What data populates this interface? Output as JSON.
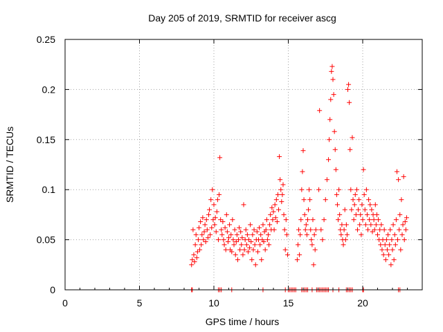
{
  "chart_data": {
    "type": "scatter",
    "title": "Day 205 of 2019, SRMTID for receiver ascg",
    "xlabel": "GPS time / hours",
    "ylabel": "SRMTID / TECUs",
    "xlim": [
      0,
      24
    ],
    "ylim": [
      0,
      0.25
    ],
    "xticks": [
      0,
      5,
      10,
      15,
      20
    ],
    "yticks": [
      0,
      0.05,
      0.1,
      0.15,
      0.2,
      0.25
    ],
    "xtick_labels": [
      "0",
      "5",
      "10",
      "15",
      "20"
    ],
    "ytick_labels": [
      "0",
      "0.05",
      "0.1",
      "0.15",
      "0.2",
      "0.25"
    ],
    "grid": true,
    "marker": "+",
    "series_color": "#ff0000",
    "series": [
      {
        "name": "SRMTID",
        "points": [
          [
            8.5,
            0.025
          ],
          [
            8.55,
            0.03
          ],
          [
            8.6,
            0.06
          ],
          [
            8.65,
            0.035
          ],
          [
            8.7,
            0.028
          ],
          [
            8.75,
            0.045
          ],
          [
            8.8,
            0.055
          ],
          [
            8.85,
            0.032
          ],
          [
            8.9,
            0.038
          ],
          [
            8.95,
            0.05
          ],
          [
            9.0,
            0.062
          ],
          [
            9.05,
            0.04
          ],
          [
            9.1,
            0.068
          ],
          [
            9.15,
            0.045
          ],
          [
            9.2,
            0.055
          ],
          [
            9.25,
            0.072
          ],
          [
            9.3,
            0.05
          ],
          [
            9.35,
            0.058
          ],
          [
            9.4,
            0.065
          ],
          [
            9.45,
            0.048
          ],
          [
            9.5,
            0.07
          ],
          [
            9.55,
            0.06
          ],
          [
            9.6,
            0.052
          ],
          [
            9.65,
            0.075
          ],
          [
            9.7,
            0.08
          ],
          [
            9.75,
            0.055
          ],
          [
            9.8,
            0.09
          ],
          [
            9.85,
            0.062
          ],
          [
            9.9,
            0.1
          ],
          [
            9.95,
            0.07
          ],
          [
            10.0,
            0.085
          ],
          [
            10.05,
            0.065
          ],
          [
            10.1,
            0.072
          ],
          [
            10.15,
            0.058
          ],
          [
            10.2,
            0.078
          ],
          [
            10.25,
            0.09
          ],
          [
            10.3,
            0.05
          ],
          [
            10.35,
            0.095
          ],
          [
            10.4,
            0.132
          ],
          [
            10.45,
            0.07
          ],
          [
            10.5,
            0.06
          ],
          [
            10.55,
            0.055
          ],
          [
            10.6,
            0.068
          ],
          [
            10.65,
            0.05
          ],
          [
            10.7,
            0.045
          ],
          [
            10.75,
            0.062
          ],
          [
            10.8,
            0.04
          ],
          [
            10.85,
            0.075
          ],
          [
            10.9,
            0.058
          ],
          [
            10.95,
            0.048
          ],
          [
            11.0,
            0.052
          ],
          [
            11.05,
            0.065
          ],
          [
            11.1,
            0.04
          ],
          [
            11.15,
            0.055
          ],
          [
            11.2,
            0.038
          ],
          [
            11.25,
            0.07
          ],
          [
            11.3,
            0.05
          ],
          [
            11.35,
            0.045
          ],
          [
            11.4,
            0.06
          ],
          [
            11.45,
            0.035
          ],
          [
            11.5,
            0.048
          ],
          [
            11.55,
            0.055
          ],
          [
            11.6,
            0.03
          ],
          [
            11.65,
            0.05
          ],
          [
            11.7,
            0.062
          ],
          [
            11.75,
            0.04
          ],
          [
            11.8,
            0.058
          ],
          [
            11.85,
            0.045
          ],
          [
            11.9,
            0.052
          ],
          [
            11.95,
            0.035
          ],
          [
            12.0,
            0.085
          ],
          [
            12.05,
            0.04
          ],
          [
            12.1,
            0.05
          ],
          [
            12.15,
            0.06
          ],
          [
            12.2,
            0.045
          ],
          [
            12.25,
            0.055
          ],
          [
            12.3,
            0.038
          ],
          [
            12.35,
            0.05
          ],
          [
            12.4,
            0.042
          ],
          [
            12.45,
            0.065
          ],
          [
            12.5,
            0.048
          ],
          [
            12.55,
            0.03
          ],
          [
            12.6,
            0.055
          ],
          [
            12.65,
            0.04
          ],
          [
            12.7,
            0.06
          ],
          [
            12.75,
            0.045
          ],
          [
            12.8,
            0.025
          ],
          [
            12.85,
            0.05
          ],
          [
            12.9,
            0.058
          ],
          [
            12.95,
            0.038
          ],
          [
            13.0,
            0.05
          ],
          [
            13.05,
            0.062
          ],
          [
            13.1,
            0.045
          ],
          [
            13.15,
            0.055
          ],
          [
            13.2,
            0.03
          ],
          [
            13.25,
            0.05
          ],
          [
            13.3,
            0.065
          ],
          [
            13.35,
            0.048
          ],
          [
            13.4,
            0.058
          ],
          [
            13.45,
            0.04
          ],
          [
            13.5,
            0.06
          ],
          [
            13.55,
            0.07
          ],
          [
            13.6,
            0.05
          ],
          [
            13.65,
            0.055
          ],
          [
            13.7,
            0.045
          ],
          [
            13.75,
            0.065
          ],
          [
            13.8,
            0.075
          ],
          [
            13.85,
            0.06
          ],
          [
            13.9,
            0.082
          ],
          [
            13.95,
            0.07
          ],
          [
            14.0,
            0.078
          ],
          [
            14.05,
            0.06
          ],
          [
            14.1,
            0.085
          ],
          [
            14.15,
            0.072
          ],
          [
            14.2,
            0.09
          ],
          [
            14.25,
            0.068
          ],
          [
            14.3,
            0.095
          ],
          [
            14.35,
            0.08
          ],
          [
            14.4,
            0.133
          ],
          [
            14.45,
            0.11
          ],
          [
            14.5,
            0.1
          ],
          [
            14.55,
            0.088
          ],
          [
            14.6,
            0.095
          ],
          [
            14.65,
            0.105
          ],
          [
            14.7,
            0.075
          ],
          [
            14.75,
            0.06
          ],
          [
            14.8,
            0.04
          ],
          [
            14.85,
            0.07
          ],
          [
            14.9,
            0.055
          ],
          [
            14.95,
            0.035
          ],
          [
            15.6,
            0.03
          ],
          [
            15.65,
            0.045
          ],
          [
            15.7,
            0.06
          ],
          [
            15.75,
            0.035
          ],
          [
            15.8,
            0.055
          ],
          [
            15.85,
            0.07
          ],
          [
            15.9,
            0.1
          ],
          [
            15.95,
            0.118
          ],
          [
            16.0,
            0.139
          ],
          [
            16.05,
            0.09
          ],
          [
            16.1,
            0.075
          ],
          [
            16.15,
            0.06
          ],
          [
            16.2,
            0.065
          ],
          [
            16.25,
            0.055
          ],
          [
            16.3,
            0.07
          ],
          [
            16.35,
            0.08
          ],
          [
            16.4,
            0.1
          ],
          [
            16.45,
            0.09
          ],
          [
            16.5,
            0.06
          ],
          [
            16.55,
            0.05
          ],
          [
            16.6,
            0.045
          ],
          [
            16.65,
            0.07
          ],
          [
            16.7,
            0.025
          ],
          [
            16.75,
            0.055
          ],
          [
            16.8,
            0.04
          ],
          [
            16.85,
            0.06
          ],
          [
            17.05,
            0.1
          ],
          [
            17.1,
            0.179
          ],
          [
            17.2,
            0.06
          ],
          [
            17.3,
            0.05
          ],
          [
            17.4,
            0.07
          ],
          [
            17.5,
            0.09
          ],
          [
            17.6,
            0.11
          ],
          [
            17.7,
            0.13
          ],
          [
            17.75,
            0.15
          ],
          [
            17.8,
            0.17
          ],
          [
            17.85,
            0.19
          ],
          [
            17.9,
            0.218
          ],
          [
            17.95,
            0.223
          ],
          [
            18.0,
            0.21
          ],
          [
            18.05,
            0.195
          ],
          [
            18.1,
            0.158
          ],
          [
            18.15,
            0.14
          ],
          [
            18.2,
            0.12
          ],
          [
            18.25,
            0.095
          ],
          [
            18.3,
            0.085
          ],
          [
            18.35,
            0.07
          ],
          [
            18.4,
            0.1
          ],
          [
            18.45,
            0.075
          ],
          [
            18.5,
            0.06
          ],
          [
            18.55,
            0.055
          ],
          [
            18.6,
            0.065
          ],
          [
            18.65,
            0.05
          ],
          [
            18.7,
            0.045
          ],
          [
            18.75,
            0.06
          ],
          [
            18.8,
            0.08
          ],
          [
            18.85,
            0.05
          ],
          [
            18.9,
            0.065
          ],
          [
            18.95,
            0.055
          ],
          [
            19.0,
            0.2
          ],
          [
            19.05,
            0.205
          ],
          [
            19.1,
            0.187
          ],
          [
            19.15,
            0.14
          ],
          [
            19.2,
            0.1
          ],
          [
            19.25,
            0.08
          ],
          [
            19.3,
            0.152
          ],
          [
            19.35,
            0.09
          ],
          [
            19.4,
            0.07
          ],
          [
            19.45,
            0.085
          ],
          [
            19.5,
            0.095
          ],
          [
            19.55,
            0.075
          ],
          [
            19.6,
            0.1
          ],
          [
            19.65,
            0.06
          ],
          [
            19.7,
            0.08
          ],
          [
            19.75,
            0.09
          ],
          [
            19.8,
            0.065
          ],
          [
            19.85,
            0.075
          ],
          [
            19.9,
            0.055
          ],
          [
            19.95,
            0.085
          ],
          [
            20.0,
            0.07
          ],
          [
            20.05,
            0.12
          ],
          [
            20.1,
            0.095
          ],
          [
            20.15,
            0.08
          ],
          [
            20.2,
            0.065
          ],
          [
            20.25,
            0.1
          ],
          [
            20.3,
            0.075
          ],
          [
            20.35,
            0.06
          ],
          [
            20.4,
            0.09
          ],
          [
            20.45,
            0.07
          ],
          [
            20.5,
            0.085
          ],
          [
            20.55,
            0.065
          ],
          [
            20.6,
            0.08
          ],
          [
            20.65,
            0.058
          ],
          [
            20.7,
            0.075
          ],
          [
            20.75,
            0.07
          ],
          [
            20.8,
            0.06
          ],
          [
            20.85,
            0.085
          ],
          [
            20.9,
            0.065
          ],
          [
            20.95,
            0.075
          ],
          [
            21.0,
            0.055
          ],
          [
            21.05,
            0.07
          ],
          [
            21.1,
            0.05
          ],
          [
            21.15,
            0.06
          ],
          [
            21.2,
            0.045
          ],
          [
            21.25,
            0.065
          ],
          [
            21.3,
            0.04
          ],
          [
            21.35,
            0.05
          ],
          [
            21.4,
            0.035
          ],
          [
            21.45,
            0.06
          ],
          [
            21.5,
            0.045
          ],
          [
            21.55,
            0.03
          ],
          [
            21.6,
            0.05
          ],
          [
            21.65,
            0.04
          ],
          [
            21.7,
            0.055
          ],
          [
            21.75,
            0.035
          ],
          [
            21.8,
            0.045
          ],
          [
            21.85,
            0.06
          ],
          [
            21.9,
            0.025
          ],
          [
            21.95,
            0.05
          ],
          [
            22.0,
            0.04
          ],
          [
            22.05,
            0.065
          ],
          [
            22.1,
            0.03
          ],
          [
            22.15,
            0.055
          ],
          [
            22.2,
            0.045
          ],
          [
            22.25,
            0.07
          ],
          [
            22.3,
            0.118
          ],
          [
            22.35,
            0.05
          ],
          [
            22.4,
            0.11
          ],
          [
            22.45,
            0.06
          ],
          [
            22.5,
            0.075
          ],
          [
            22.55,
            0.04
          ],
          [
            22.6,
            0.09
          ],
          [
            22.65,
            0.055
          ],
          [
            22.7,
            0.065
          ],
          [
            22.75,
            0.113
          ],
          [
            22.8,
            0.05
          ],
          [
            22.85,
            0.068
          ],
          [
            22.9,
            0.06
          ],
          [
            22.95,
            0.072
          ]
        ]
      }
    ],
    "zero_marks_x": [
      8.5,
      8.55,
      10.3,
      10.4,
      10.5,
      11.2,
      13.3,
      14.8,
      15.0,
      15.1,
      15.2,
      15.3,
      15.4,
      15.5,
      15.9,
      16.0,
      16.1,
      16.2,
      16.3,
      16.6,
      16.9,
      17.0,
      17.1,
      17.2,
      17.3,
      17.4,
      17.5,
      17.6,
      17.7,
      18.0,
      18.4,
      18.9,
      19.0,
      19.1,
      19.2,
      19.3,
      20.0,
      20.05,
      22.4,
      22.5
    ]
  }
}
